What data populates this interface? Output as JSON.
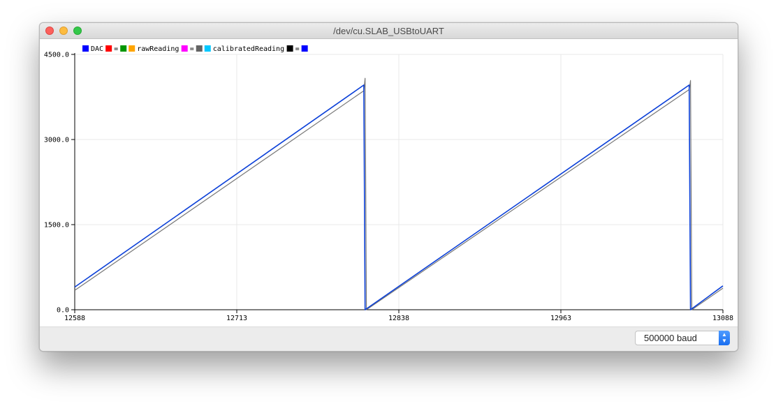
{
  "window": {
    "title": "/dev/cu.SLAB_USBtoUART"
  },
  "footer": {
    "baud_label": "500000 baud"
  },
  "colors": {
    "grid": "#e8e8e8",
    "axis": "#000000",
    "dac": "#0a3fd8",
    "raw": "#777777"
  },
  "legend": [
    {
      "kind": "swatch",
      "color": "#0000ff"
    },
    {
      "kind": "text",
      "text": "DAC"
    },
    {
      "kind": "swatch",
      "color": "#ff0000"
    },
    {
      "kind": "text",
      "text": "="
    },
    {
      "kind": "swatch",
      "color": "#009600"
    },
    {
      "kind": "swatch",
      "color": "#ffa500"
    },
    {
      "kind": "text",
      "text": "rawReading"
    },
    {
      "kind": "swatch",
      "color": "#ff00ff"
    },
    {
      "kind": "text",
      "text": "="
    },
    {
      "kind": "swatch",
      "color": "#646464"
    },
    {
      "kind": "swatch",
      "color": "#00c8ff"
    },
    {
      "kind": "text",
      "text": "calibratedReading"
    },
    {
      "kind": "swatch",
      "color": "#000000"
    },
    {
      "kind": "text",
      "text": "="
    },
    {
      "kind": "swatch",
      "color": "#0000ff"
    }
  ],
  "chart_data": {
    "type": "line",
    "xlim": [
      12588,
      13088
    ],
    "ylim": [
      0,
      4500
    ],
    "x_ticks": [
      12588,
      12713,
      12838,
      12963,
      13088
    ],
    "x_tick_labels": [
      "12588",
      "12713",
      "12838",
      "12963",
      "13088"
    ],
    "y_ticks": [
      0,
      1500,
      3000,
      4500
    ],
    "y_tick_labels": [
      "0.0",
      "1500.0",
      "3000.0",
      "4500.0"
    ],
    "grid": true,
    "legend_position": "top-left",
    "series": [
      {
        "name": "DAC",
        "color": "#0a3fd8",
        "points": [
          [
            12588,
            400
          ],
          [
            12811,
            3960
          ],
          [
            12812,
            0
          ],
          [
            13062,
            3960
          ],
          [
            13063,
            0
          ],
          [
            13088,
            420
          ]
        ]
      },
      {
        "name": "rawReading",
        "color": "#777777",
        "points": [
          [
            12588,
            340
          ],
          [
            12811,
            3860
          ],
          [
            12812,
            4080
          ],
          [
            12813,
            0
          ],
          [
            13062,
            3880
          ],
          [
            13063,
            4040
          ],
          [
            13064,
            0
          ],
          [
            13088,
            380
          ]
        ]
      }
    ]
  }
}
